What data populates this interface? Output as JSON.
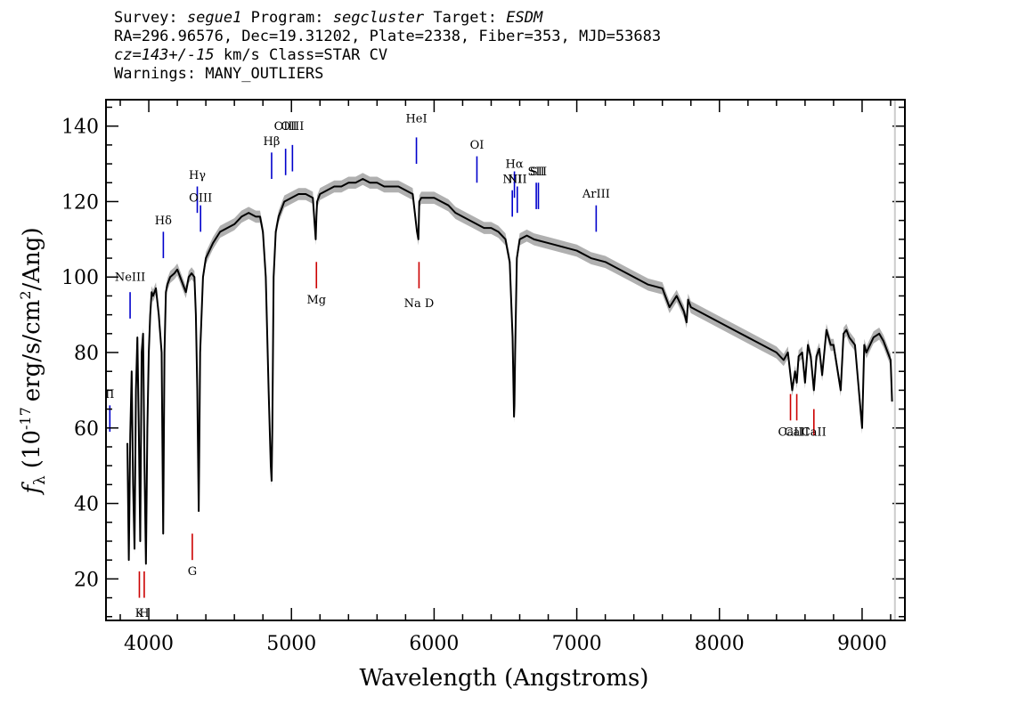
{
  "header": {
    "survey_label": "Survey:",
    "survey": "segue1",
    "program_label": "Program:",
    "program": "segcluster",
    "target_label": "Target:",
    "target": "ESDM",
    "line2": "RA=296.96576, Dec=19.31202, Plate=2338, Fiber=353, MJD=53683",
    "cz": "cz=143+/-15",
    "line3_rest": "km/s Class=STAR CV",
    "line4": "Warnings: MANY_OUTLIERS"
  },
  "chart_data": {
    "type": "line",
    "xlabel": "Wavelength (Angstroms)",
    "ylabel_f": "f",
    "ylabel_sub": "λ",
    "ylabel_open": "(10",
    "ylabel_exp": "-17",
    "ylabel_mid": "erg/s/cm",
    "ylabel_sq": "2",
    "ylabel_close": "/Ang)",
    "xlim": [
      3700,
      9300
    ],
    "ylim": [
      9,
      147
    ],
    "xticks": [
      4000,
      5000,
      6000,
      7000,
      8000,
      9000
    ],
    "yticks": [
      20,
      40,
      60,
      80,
      100,
      120,
      140
    ],
    "grid": false,
    "series": [
      {
        "x": [
          3850,
          3860,
          3870,
          3880,
          3890,
          3900,
          3910,
          3920,
          3930,
          3940,
          3950,
          3960,
          3970,
          3980,
          3990,
          4000,
          4010,
          4020,
          4030,
          4050,
          4070,
          4090,
          4101,
          4110,
          4120,
          4130,
          4150,
          4180,
          4200,
          4230,
          4260,
          4280,
          4300,
          4320,
          4330,
          4340,
          4350,
          4360,
          4380,
          4400,
          4450,
          4500,
          4550,
          4600,
          4650,
          4700,
          4750,
          4780,
          4800,
          4820,
          4840,
          4855,
          4861,
          4866,
          4875,
          4890,
          4910,
          4930,
          4950,
          5000,
          5050,
          5100,
          5150,
          5170,
          5175,
          5180,
          5200,
          5250,
          5300,
          5350,
          5400,
          5450,
          5500,
          5550,
          5600,
          5650,
          5700,
          5750,
          5800,
          5850,
          5880,
          5890,
          5896,
          5910,
          5950,
          6000,
          6050,
          6100,
          6150,
          6200,
          6250,
          6300,
          6350,
          6400,
          6450,
          6500,
          6530,
          6550,
          6560,
          6563,
          6568,
          6580,
          6600,
          6650,
          6700,
          6800,
          6900,
          7000,
          7100,
          7200,
          7300,
          7400,
          7500,
          7600,
          7650,
          7700,
          7750,
          7770,
          7780,
          7800,
          7900,
          8000,
          8100,
          8200,
          8300,
          8400,
          8450,
          8480,
          8498,
          8510,
          8530,
          8542,
          8555,
          8580,
          8600,
          8620,
          8640,
          8662,
          8680,
          8700,
          8720,
          8750,
          8780,
          8800,
          8850,
          8870,
          8890,
          8910,
          8950,
          9000,
          9015,
          9030,
          9080,
          9120,
          9150,
          9180,
          9200,
          9210
        ],
        "y": [
          56,
          25,
          58,
          75,
          45,
          28,
          70,
          84,
          60,
          30,
          80,
          85,
          50,
          24,
          60,
          80,
          90,
          96,
          95,
          97,
          90,
          80,
          32,
          80,
          96,
          98,
          100,
          101,
          102,
          99,
          96,
          100,
          101,
          100,
          90,
          70,
          38,
          80,
          100,
          105,
          109,
          112,
          113,
          114,
          116,
          117,
          116,
          116,
          112,
          100,
          70,
          50,
          46,
          60,
          100,
          112,
          116,
          118,
          120,
          121,
          122,
          122,
          121,
          110,
          116,
          120,
          122,
          123,
          124,
          124,
          125,
          125,
          126,
          125,
          125,
          124,
          124,
          124,
          123,
          122,
          112,
          110,
          120,
          121,
          121,
          121,
          120,
          119,
          117,
          116,
          115,
          114,
          113,
          113,
          112,
          110,
          104,
          84,
          63,
          66,
          80,
          105,
          110,
          111,
          110,
          109,
          108,
          107,
          105,
          104,
          102,
          100,
          98,
          97,
          92,
          95,
          91,
          88,
          94,
          92,
          90,
          88,
          86,
          84,
          82,
          80,
          78,
          80,
          74,
          70,
          75,
          72,
          79,
          80,
          72,
          82,
          79,
          70,
          79,
          81,
          74,
          86,
          82,
          82,
          70,
          85,
          86,
          84,
          82,
          60,
          82,
          80,
          84,
          85,
          83,
          80,
          78,
          67
        ],
        "band": 1.6
      }
    ],
    "lines": [
      {
        "label": "NeIII",
        "wave": 3869,
        "y0": 89,
        "y1": 96,
        "label_y": 99,
        "color": "#0000cc"
      },
      {
        "label": "II",
        "wave": 3727,
        "y0": 59,
        "y1": 66,
        "label_y": 68,
        "color": "#0000cc"
      },
      {
        "label": "Hδ",
        "wave": 4102,
        "y0": 105,
        "y1": 112,
        "label_y": 114,
        "color": "#0000cc"
      },
      {
        "label": "Hγ",
        "wave": 4340,
        "y0": 117,
        "y1": 124,
        "label_y": 126,
        "color": "#0000cc"
      },
      {
        "label": "OIII",
        "wave": 4363,
        "y0": 112,
        "y1": 119,
        "label_y": 120,
        "color": "#0000cc"
      },
      {
        "label": "Hβ",
        "wave": 4861,
        "y0": 126,
        "y1": 133,
        "label_y": 135,
        "color": "#0000cc"
      },
      {
        "label": "OIII",
        "wave": 4959,
        "y0": 127,
        "y1": 134,
        "label_y": 139,
        "color": "#0000cc"
      },
      {
        "label": "OIII",
        "wave": 5007,
        "y0": 128,
        "y1": 135,
        "label_y": 139,
        "color": "#0000cc"
      },
      {
        "label": "HeI",
        "wave": 5876,
        "y0": 130,
        "y1": 137,
        "label_y": 141,
        "color": "#0000cc"
      },
      {
        "label": "OI",
        "wave": 6300,
        "y0": 125,
        "y1": 132,
        "label_y": 134,
        "color": "#0000cc"
      },
      {
        "label": "NII",
        "wave": 6548,
        "y0": 116,
        "y1": 123,
        "label_y": 125,
        "color": "#0000cc"
      },
      {
        "label": "Hα",
        "wave": 6563,
        "y0": 121,
        "y1": 128,
        "label_y": 129,
        "color": "#0000cc"
      },
      {
        "label": "NII",
        "wave": 6583,
        "y0": 117,
        "y1": 124,
        "label_y": 125,
        "color": "#0000cc"
      },
      {
        "label": "SII",
        "wave": 6716,
        "y0": 118,
        "y1": 125,
        "label_y": 127,
        "color": "#0000cc"
      },
      {
        "label": "SII",
        "wave": 6731,
        "y0": 118,
        "y1": 125,
        "label_y": 127,
        "color": "#0000cc"
      },
      {
        "label": "ArIII",
        "wave": 7136,
        "y0": 112,
        "y1": 119,
        "label_y": 121,
        "color": "#0000cc"
      },
      {
        "label": "K",
        "wave": 3934,
        "y0": 15,
        "y1": 22,
        "label_y": 10,
        "color": "#cc0000"
      },
      {
        "label": "H",
        "wave": 3968,
        "y0": 15,
        "y1": 22,
        "label_y": 10,
        "color": "#cc0000"
      },
      {
        "label": "G",
        "wave": 4305,
        "y0": 25,
        "y1": 32,
        "label_y": 21,
        "color": "#cc0000"
      },
      {
        "label": "Mg",
        "wave": 5175,
        "y0": 97,
        "y1": 104,
        "label_y": 93,
        "color": "#cc0000"
      },
      {
        "label": "Na D",
        "wave": 5894,
        "y0": 97,
        "y1": 104,
        "label_y": 92,
        "color": "#cc0000"
      },
      {
        "label": "CaII",
        "wave": 8498,
        "y0": 62,
        "y1": 69,
        "label_y": 58,
        "color": "#cc0000"
      },
      {
        "label": "CaII",
        "wave": 8542,
        "y0": 62,
        "y1": 69,
        "label_y": 58,
        "color": "#cc0000"
      },
      {
        "label": "CaII",
        "wave": 8662,
        "y0": 58,
        "y1": 65,
        "label_y": 58,
        "color": "#cc0000"
      }
    ],
    "colors": {
      "spectrum": "#000000",
      "error_band": "#b0b0b0",
      "emission": "#0000cc",
      "absorption": "#cc0000",
      "right_edge": "#cccccc"
    }
  }
}
